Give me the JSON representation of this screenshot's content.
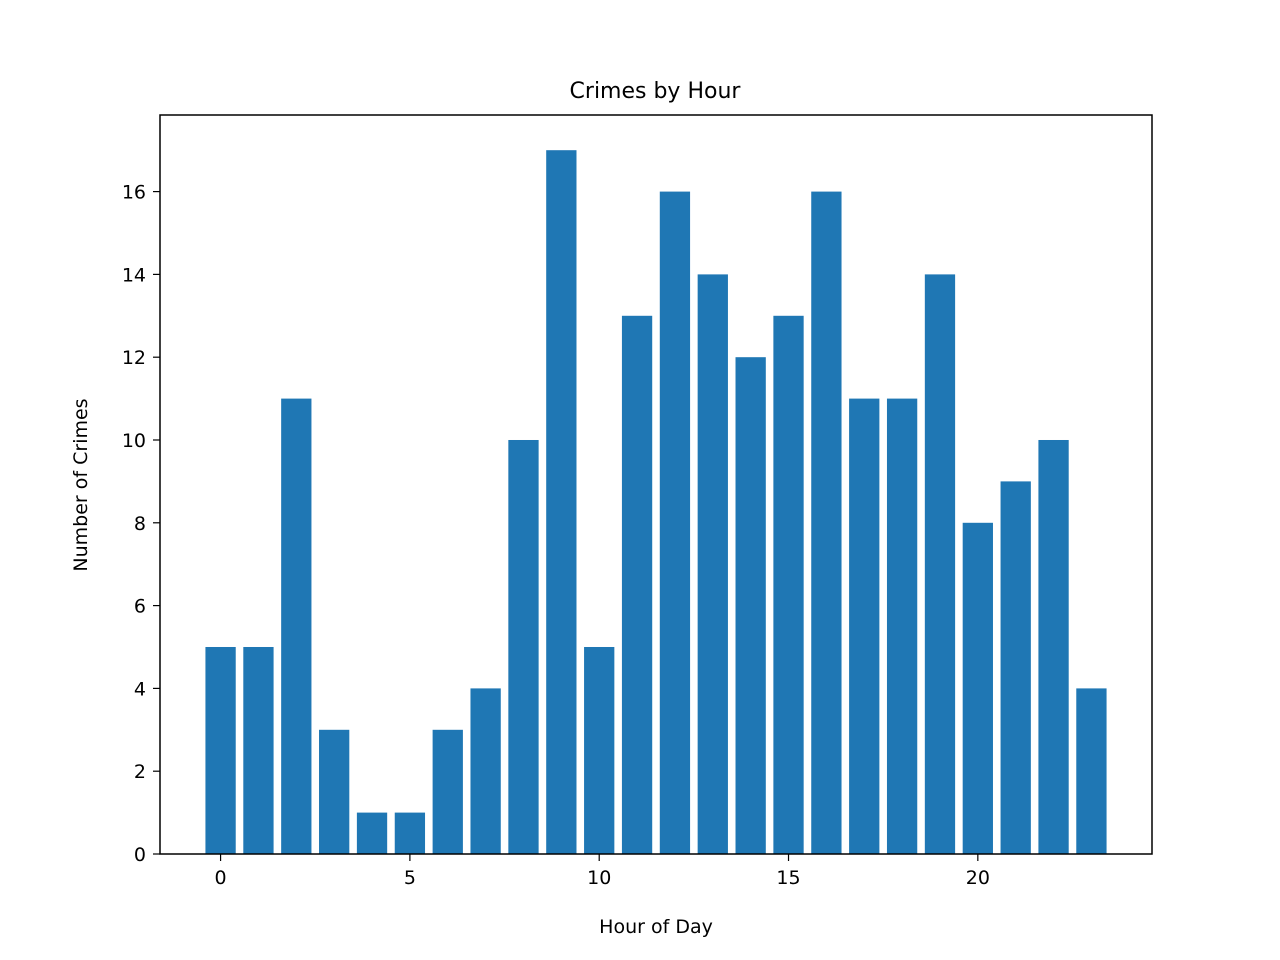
{
  "chart_data": {
    "type": "bar",
    "title": "Crimes by Hour",
    "xlabel": "Hour of Day",
    "ylabel": "Number of Crimes",
    "categories": [
      0,
      1,
      2,
      3,
      4,
      5,
      6,
      7,
      8,
      9,
      10,
      11,
      12,
      13,
      14,
      15,
      16,
      17,
      18,
      19,
      20,
      21,
      22,
      23
    ],
    "values": [
      5,
      5,
      11,
      3,
      1,
      1,
      3,
      4,
      10,
      17,
      5,
      13,
      16,
      14,
      12,
      13,
      16,
      11,
      11,
      14,
      8,
      9,
      10,
      4
    ],
    "xlim": [
      -1.6,
      24.6
    ],
    "ylim": [
      0,
      17.85
    ],
    "xticks": [
      0,
      5,
      10,
      15,
      20
    ],
    "yticks": [
      0,
      2,
      4,
      6,
      8,
      10,
      12,
      14,
      16
    ],
    "bar_color": "#1f77b4",
    "grid": false,
    "legend": "none"
  }
}
